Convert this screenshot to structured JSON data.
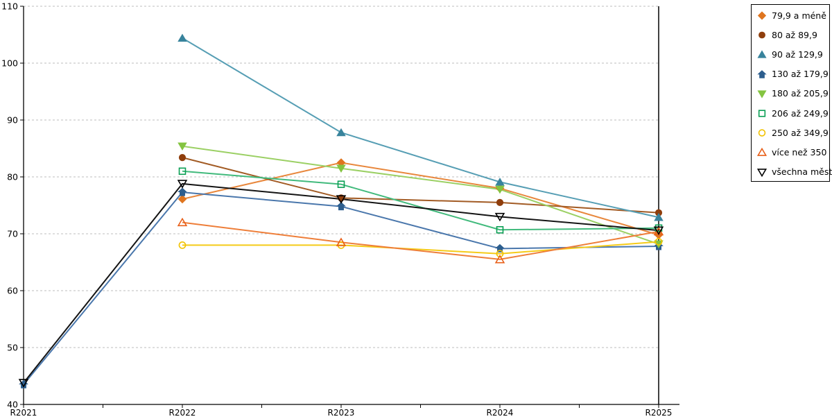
{
  "chart_data": {
    "type": "line",
    "title": "",
    "xlabel": "",
    "ylabel": "",
    "x_categories": [
      "R2021",
      "R2022",
      "R2023",
      "R2024",
      "R2025"
    ],
    "y_ticks": [
      40,
      50,
      60,
      70,
      80,
      90,
      100,
      110
    ],
    "ylim": [
      40,
      110
    ],
    "grid": "horizontal-dashed",
    "legend_position": "top-right",
    "series": [
      {
        "name": "79,9 a méně",
        "marker": "diamond",
        "filled": true,
        "color": "#DF751F",
        "line_color": "#E8873C",
        "values": [
          null,
          76.1,
          82.5,
          78.0,
          69.8
        ]
      },
      {
        "name": "80 až 89,9",
        "marker": "circle",
        "filled": true,
        "color": "#8F3E0C",
        "line_color": "#A25B24",
        "values": [
          null,
          83.4,
          76.3,
          75.5,
          73.7
        ]
      },
      {
        "name": "90 až 129,9",
        "marker": "triangle-up",
        "filled": true,
        "color": "#38839C",
        "line_color": "#569EB4",
        "values": [
          null,
          104.4,
          87.8,
          79.1,
          72.9
        ]
      },
      {
        "name": "130 až 179,9",
        "marker": "pentagon",
        "filled": true,
        "color": "#2D5E8E",
        "line_color": "#4A77AC",
        "values": [
          43.5,
          77.3,
          74.8,
          67.4,
          67.8
        ]
      },
      {
        "name": "180 až 205,9",
        "marker": "triangle-down",
        "filled": true,
        "color": "#84C441",
        "line_color": "#9BD064",
        "values": [
          null,
          85.4,
          81.5,
          77.8,
          68.2
        ]
      },
      {
        "name": "206 až 249,9",
        "marker": "square",
        "filled": false,
        "color": "#099E53",
        "line_color": "#41BA7C",
        "values": [
          null,
          81.0,
          78.7,
          70.7,
          71.0
        ]
      },
      {
        "name": "250 až 349,9",
        "marker": "circle",
        "filled": false,
        "color": "#F2C200",
        "line_color": "#F5CB18",
        "values": [
          null,
          68.0,
          68.0,
          66.5,
          68.6
        ]
      },
      {
        "name": "více než 350",
        "marker": "triangle-up",
        "filled": false,
        "color": "#E8601A",
        "line_color": "#EE7E39",
        "values": [
          null,
          72.0,
          68.5,
          65.5,
          70.4
        ]
      },
      {
        "name": "všechna města",
        "marker": "triangle-down",
        "filled": false,
        "color": "#000000",
        "line_color": "#141414",
        "values": [
          43.8,
          78.8,
          76.1,
          73.0,
          70.6
        ]
      }
    ]
  }
}
